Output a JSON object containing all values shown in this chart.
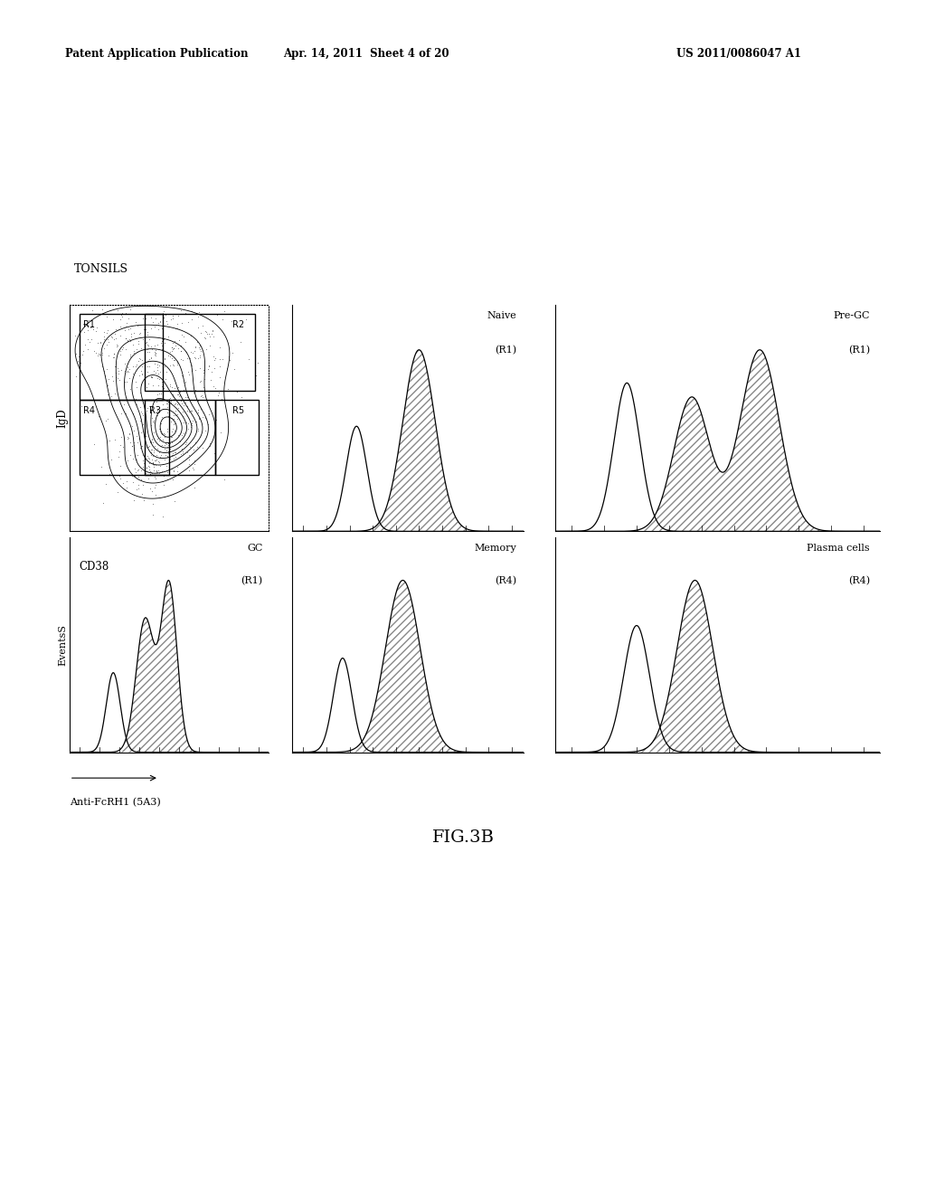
{
  "title_left": "Patent Application Publication",
  "title_mid": "Apr. 14, 2011  Sheet 4 of 20",
  "title_right": "US 2011/0086047 A1",
  "tonsils_label": "TONSILS",
  "fig_label": "FIG.3B",
  "contour_xlabel": "CD38",
  "contour_ylabel": "IgD",
  "histogram_xlabel": "Anti-FcRH1 (5A3)",
  "histogram_ylabel": "EventsS",
  "background_color": "#ffffff"
}
